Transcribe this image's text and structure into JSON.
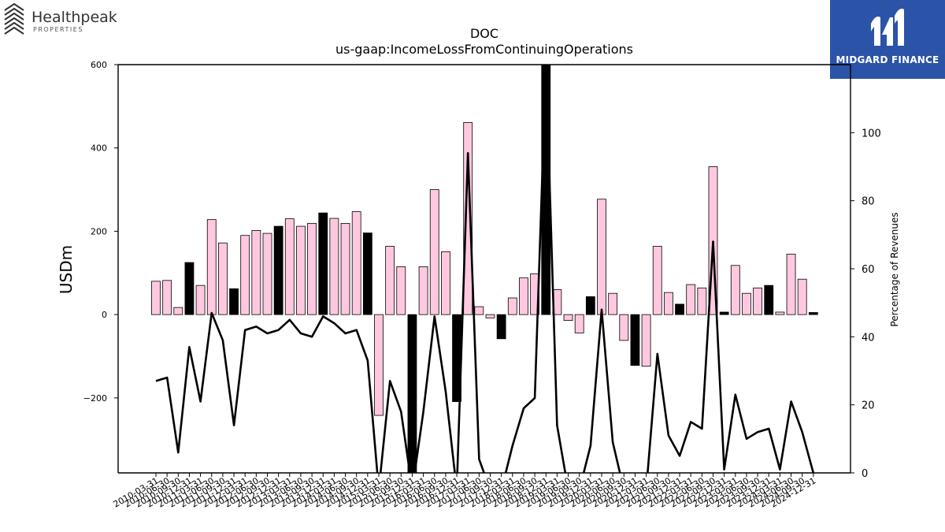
{
  "logos": {
    "left": {
      "name": "Healthpeak",
      "sub": "PROPERTIES"
    },
    "right": {
      "name": "MIDGARD FINANCE",
      "bg": "#2b53a7"
    }
  },
  "chart_data": {
    "type": "bar",
    "title": "DOC",
    "subtitle": "us-gaap:IncomeLossFromContinuingOperations",
    "ylabel": "USDm",
    "y2label": "Percentage of Revenues",
    "ylim": [
      -380,
      600
    ],
    "y2lim": [
      0,
      120
    ],
    "yticks": [
      -200,
      0,
      200,
      400,
      600
    ],
    "y2ticks": [
      0,
      20,
      40,
      60,
      80,
      100
    ],
    "grid": false,
    "colors": {
      "quarter": "#ffc8e0",
      "annual": "#000000",
      "line": "#000000"
    },
    "categories": [
      "2010-03-31",
      "2010-06-30",
      "2010-09-30",
      "2010-12-31",
      "2011-03-31",
      "2011-06-30",
      "2011-09-30",
      "2011-12-31",
      "2012-03-31",
      "2012-06-30",
      "2012-09-30",
      "2012-12-31",
      "2013-03-31",
      "2013-06-30",
      "2013-09-30",
      "2013-12-31",
      "2014-03-31",
      "2014-06-30",
      "2014-09-30",
      "2014-12-31",
      "2015-03-31",
      "2015-06-30",
      "2015-09-30",
      "2015-12-31",
      "2016-03-31",
      "2016-06-30",
      "2016-09-30",
      "2016-12-31",
      "2017-03-31",
      "2017-06-30",
      "2017-09-30",
      "2017-12-31",
      "2018-03-31",
      "2018-06-30",
      "2018-09-30",
      "2018-12-31",
      "2019-03-31",
      "2019-06-30",
      "2019-09-30",
      "2019-12-31",
      "2020-03-31",
      "2020-06-30",
      "2020-09-30",
      "2020-12-31",
      "2021-03-31",
      "2021-06-30",
      "2021-09-30",
      "2021-12-31",
      "2022-03-31",
      "2022-06-30",
      "2022-09-30",
      "2022-12-31",
      "2023-03-31",
      "2023-06-30",
      "2023-09-30",
      "2023-12-31",
      "2024-03-31",
      "2024-06-30",
      "2024-09-30",
      "2024-12-31"
    ],
    "series": [
      {
        "type": "bar",
        "values": [
          80,
          82,
          17,
          125,
          70,
          228,
          172,
          62,
          190,
          202,
          195,
          212,
          230,
          212,
          219,
          244,
          231,
          219,
          247,
          196,
          -242,
          164,
          115,
          -380,
          115,
          300,
          151,
          -209,
          461,
          19,
          -8,
          -58,
          40,
          88,
          98,
          600,
          60,
          -14,
          -44,
          43,
          277,
          51,
          -62,
          -122,
          -124,
          164,
          53,
          25,
          72,
          64,
          355,
          6,
          118,
          51,
          64,
          70,
          6,
          145,
          85,
          5
        ],
        "annual": [
          false,
          false,
          false,
          true,
          false,
          false,
          false,
          true,
          false,
          false,
          false,
          true,
          false,
          false,
          false,
          true,
          false,
          false,
          false,
          true,
          false,
          false,
          false,
          true,
          false,
          false,
          false,
          true,
          false,
          false,
          false,
          true,
          false,
          false,
          false,
          true,
          false,
          false,
          false,
          true,
          false,
          false,
          false,
          true,
          false,
          false,
          false,
          true,
          false,
          false,
          false,
          true,
          false,
          false,
          false,
          true,
          false,
          false,
          false,
          true
        ]
      },
      {
        "type": "line",
        "axis": "right",
        "values": [
          27,
          28,
          6,
          37,
          21,
          47,
          39,
          14,
          42,
          43,
          41,
          42,
          45,
          41,
          40,
          46,
          44,
          41,
          42,
          33,
          -5,
          27,
          18,
          -5,
          18,
          46,
          24,
          -5,
          94,
          4,
          -5,
          -5,
          8,
          19,
          22,
          120,
          14,
          -5,
          -5,
          8,
          48,
          9,
          -5,
          -5,
          -5,
          35,
          11,
          5,
          15,
          13,
          68,
          1,
          23,
          10,
          12,
          13,
          1,
          21,
          12,
          0
        ]
      }
    ]
  }
}
